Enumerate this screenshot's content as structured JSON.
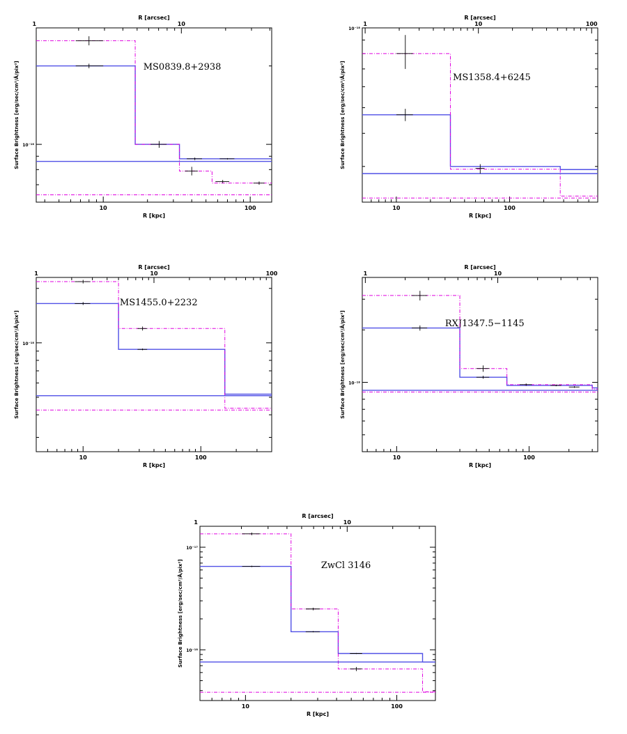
{
  "figure": {
    "colors": {
      "model": "#5050e6",
      "data": "#e000e0",
      "axis": "#000000",
      "bars": "#000000"
    }
  },
  "chart_data": [
    {
      "type": "line",
      "title": "",
      "annotation": "MS0839.8+2938",
      "xlabel": "R [kpc]",
      "x2label": "R [arcsec]",
      "ylabel": "Surface Brightness [erg/sec/cm²/Å/pix²]",
      "xlog": true,
      "ylog": true,
      "xlim": [
        3.5,
        140
      ],
      "ylim": [
        6e-19,
        2.8e-18
      ],
      "x_ticks": [
        {
          "v": 10,
          "label": "10"
        },
        {
          "v": 100,
          "label": "100"
        }
      ],
      "y_ticks": [
        {
          "v": 1e-18,
          "label": "10⁻¹⁸"
        }
      ],
      "top_axis": {
        "kpc_per_arcsec": 3.4,
        "ticks": [
          {
            "v": 1,
            "label": "1"
          },
          {
            "v": 10,
            "label": "10"
          }
        ]
      },
      "series": [
        {
          "name": "model",
          "style": "solid",
          "edges": [
            3.5,
            16.5,
            33,
            140
          ],
          "values": [
            2e-18,
            1e-18,
            8.8e-19
          ]
        },
        {
          "name": "data",
          "style": "dashdot",
          "edges": [
            3.5,
            16.5,
            33,
            55,
            140
          ],
          "values": [
            2.5e-18,
            1e-18,
            7.9e-19,
            7.1e-19
          ]
        },
        {
          "name": "model background",
          "style": "solid",
          "edges": [
            3.5,
            140
          ],
          "values": [
            8.6e-19
          ]
        },
        {
          "name": "data background",
          "style": "dashdot",
          "edges": [
            3.5,
            140
          ],
          "values": [
            6.4e-19
          ]
        }
      ],
      "points": [
        {
          "x": 8,
          "y": 2.5e-18,
          "xerr": [
            6.5,
            10
          ],
          "yerr": [
            2.4e-18,
            2.6e-18
          ]
        },
        {
          "x": 8,
          "y": 2e-18,
          "xerr": [
            6.5,
            10
          ],
          "yerr": [
            1.96e-18,
            2.04e-18
          ]
        },
        {
          "x": 24,
          "y": 1e-18,
          "xerr": [
            21,
            27
          ],
          "yerr": [
            9.7e-19,
            1.03e-18
          ]
        },
        {
          "x": 40,
          "y": 7.9e-19,
          "xerr": [
            36,
            44
          ],
          "yerr": [
            7.6e-19,
            8.2e-19
          ]
        },
        {
          "x": 42,
          "y": 8.8e-19,
          "xerr": [
            37,
            47
          ],
          "yerr": [
            8.7e-19,
            8.9e-19
          ]
        },
        {
          "x": 65,
          "y": 7.2e-19,
          "xerr": [
            58,
            72
          ],
          "yerr": [
            7.1e-19,
            7.3e-19
          ]
        },
        {
          "x": 70,
          "y": 8.8e-19,
          "xerr": [
            62,
            78
          ],
          "yerr": [
            8.75e-19,
            8.85e-19
          ]
        },
        {
          "x": 115,
          "y": 7.1e-19,
          "xerr": [
            105,
            125
          ],
          "yerr": [
            7e-19,
            7.2e-19
          ]
        }
      ]
    },
    {
      "type": "line",
      "title": "",
      "annotation": "MS1358.4+6245",
      "xlabel": "R [kpc]",
      "x2label": "R [arcsec]",
      "ylabel": "Surface Brightness [erg/sec/cm²/Å/pix²]",
      "xlog": true,
      "ylog": true,
      "xlim": [
        5,
        600
      ],
      "ylim": [
        2.2e-19,
        1e-18
      ],
      "x_ticks": [
        {
          "v": 10,
          "label": "10"
        },
        {
          "v": 100,
          "label": "100"
        }
      ],
      "y_ticks": [
        {
          "v": 1e-18,
          "label": "10⁻¹⁸"
        }
      ],
      "top_axis": {
        "kpc_per_arcsec": 5.3,
        "ticks": [
          {
            "v": 1,
            "label": "1"
          },
          {
            "v": 10,
            "label": "10"
          },
          {
            "v": 100,
            "label": "100"
          }
        ]
      },
      "series": [
        {
          "name": "model",
          "style": "solid",
          "edges": [
            5,
            30,
            280,
            600
          ],
          "values": [
            4.7e-19,
            3e-19,
            2.92e-19
          ]
        },
        {
          "name": "data",
          "style": "dashdot",
          "edges": [
            5,
            30,
            280,
            600
          ],
          "values": [
            8e-19,
            2.93e-19,
            2.32e-19
          ]
        },
        {
          "name": "model background",
          "style": "solid",
          "edges": [
            5,
            600
          ],
          "values": [
            2.82e-19
          ]
        },
        {
          "name": "data background",
          "style": "dashdot",
          "edges": [
            5,
            600
          ],
          "values": [
            2.28e-19
          ]
        }
      ],
      "points": [
        {
          "x": 12,
          "y": 8e-19,
          "xerr": [
            10,
            14
          ],
          "yerr": [
            7e-19,
            9.4e-19
          ]
        },
        {
          "x": 12,
          "y": 4.7e-19,
          "xerr": [
            10,
            14
          ],
          "yerr": [
            4.45e-19,
            4.95e-19
          ]
        },
        {
          "x": 55,
          "y": 2.95e-19,
          "xerr": [
            50,
            60
          ],
          "yerr": [
            2.82e-19,
            3.06e-19
          ]
        }
      ]
    },
    {
      "type": "line",
      "title": "",
      "annotation": "MS1455.0+2232",
      "xlabel": "R [kpc]",
      "x2label": "R [arcsec]",
      "ylabel": "Surface Brightness [erg/sec/cm²/Å/pix²]",
      "xlog": true,
      "ylog": true,
      "xlim": [
        4,
        400
      ],
      "ylim": [
        2.5e-19,
        2.3e-18
      ],
      "x_ticks": [
        {
          "v": 10,
          "label": "10"
        },
        {
          "v": 100,
          "label": "100"
        }
      ],
      "y_ticks": [
        {
          "v": 1e-18,
          "label": "10⁻¹⁸"
        }
      ],
      "top_axis": {
        "kpc_per_arcsec": 4.0,
        "ticks": [
          {
            "v": 1,
            "label": "1"
          },
          {
            "v": 10,
            "label": "10"
          },
          {
            "v": 100,
            "label": "100"
          }
        ]
      },
      "series": [
        {
          "name": "model",
          "style": "solid",
          "edges": [
            4,
            20,
            160,
            400
          ],
          "values": [
            1.65e-18,
            9.2e-19,
            5.2e-19
          ]
        },
        {
          "name": "data",
          "style": "dashdot",
          "edges": [
            4,
            20,
            160,
            400
          ],
          "values": [
            2.18e-18,
            1.2e-18,
            4.35e-19
          ]
        },
        {
          "name": "model background",
          "style": "solid",
          "edges": [
            4,
            400
          ],
          "values": [
            5.1e-19
          ]
        },
        {
          "name": "data background",
          "style": "dashdot",
          "edges": [
            4,
            400
          ],
          "values": [
            4.25e-19
          ]
        }
      ],
      "points": [
        {
          "x": 10,
          "y": 2.18e-18,
          "xerr": [
            8.5,
            11.5
          ],
          "yerr": [
            2.13e-18,
            2.23e-18
          ]
        },
        {
          "x": 10,
          "y": 1.65e-18,
          "xerr": [
            8.5,
            11.5
          ],
          "yerr": [
            1.62e-18,
            1.68e-18
          ]
        },
        {
          "x": 32,
          "y": 1.2e-18,
          "xerr": [
            29,
            35
          ],
          "yerr": [
            1.17e-18,
            1.23e-18
          ]
        },
        {
          "x": 32,
          "y": 9.2e-19,
          "xerr": [
            29,
            35
          ],
          "yerr": [
            9.1e-19,
            9.3e-19
          ]
        }
      ]
    },
    {
      "type": "line",
      "title": "",
      "annotation": "RXJ1347.5−1145",
      "xlabel": "R [kpc]",
      "x2label": "R [arcsec]",
      "ylabel": "Surface Brightness [erg/sec/cm²/Å/pix²]",
      "xlog": true,
      "ylog": true,
      "xlim": [
        5.5,
        330
      ],
      "ylim": [
        4e-19,
        4e-18
      ],
      "x_ticks": [
        {
          "v": 10,
          "label": "10"
        },
        {
          "v": 100,
          "label": "100"
        }
      ],
      "y_ticks": [
        {
          "v": 1e-18,
          "label": "10⁻¹⁸"
        }
      ],
      "top_axis": {
        "kpc_per_arcsec": 5.8,
        "ticks": [
          {
            "v": 1,
            "label": "1"
          },
          {
            "v": 10,
            "label": "10"
          }
        ]
      },
      "series": [
        {
          "name": "model",
          "style": "solid",
          "edges": [
            5.5,
            30,
            68,
            300,
            330
          ],
          "values": [
            2.05e-18,
            1.07e-18,
            9.6e-19,
            9.3e-19
          ]
        },
        {
          "name": "data",
          "style": "dashdot",
          "edges": [
            5.5,
            30,
            68,
            300,
            330
          ],
          "values": [
            3.15e-18,
            1.2e-18,
            9.7e-19,
            9.15e-19
          ]
        },
        {
          "name": "model background",
          "style": "solid",
          "edges": [
            5.5,
            330
          ],
          "values": [
            9e-19
          ]
        },
        {
          "name": "data background",
          "style": "dashdot",
          "edges": [
            5.5,
            330
          ],
          "values": [
            8.8e-19
          ]
        }
      ],
      "points": [
        {
          "x": 15,
          "y": 3.15e-18,
          "xerr": [
            13,
            17
          ],
          "yerr": [
            2.95e-18,
            3.35e-18
          ]
        },
        {
          "x": 15,
          "y": 2.05e-18,
          "xerr": [
            13,
            17
          ],
          "yerr": [
            1.98e-18,
            2.12e-18
          ]
        },
        {
          "x": 45,
          "y": 1.2e-18,
          "xerr": [
            40,
            50
          ],
          "yerr": [
            1.15e-18,
            1.25e-18
          ]
        },
        {
          "x": 45,
          "y": 1.07e-18,
          "xerr": [
            40,
            50
          ],
          "yerr": [
            1.05e-18,
            1.09e-18
          ]
        },
        {
          "x": 95,
          "y": 9.7e-19,
          "xerr": [
            85,
            105
          ],
          "yerr": [
            9.55e-19,
            9.85e-19
          ]
        },
        {
          "x": 160,
          "y": 9.6e-19,
          "xerr": [
            145,
            175
          ],
          "yerr": [
            9.5e-19,
            9.7e-19
          ]
        },
        {
          "x": 220,
          "y": 9.4e-19,
          "xerr": [
            200,
            240
          ],
          "yerr": [
            9.3e-19,
            9.5e-19
          ]
        }
      ]
    },
    {
      "type": "line",
      "title": "",
      "annotation": "ZwCl 3146",
      "xlabel": "R [kpc]",
      "x2label": "R [arcsec]",
      "ylabel": "Surface Brightness [erg/sec/cm²/Å/pix²]",
      "xlog": true,
      "ylog": true,
      "xlim": [
        5,
        180
      ],
      "ylim": [
        3.2e-19,
        1.6e-17
      ],
      "x_ticks": [
        {
          "v": 10,
          "label": "10"
        },
        {
          "v": 100,
          "label": "100"
        }
      ],
      "y_ticks": [
        {
          "v": 1e-17,
          "label": "10⁻¹⁷"
        },
        {
          "v": 1e-18,
          "label": "10⁻¹⁸"
        }
      ],
      "top_axis": {
        "kpc_per_arcsec": 4.7,
        "ticks": [
          {
            "v": 1,
            "label": "1"
          },
          {
            "v": 10,
            "label": "10"
          }
        ]
      },
      "series": [
        {
          "name": "model",
          "style": "solid",
          "edges": [
            5,
            20,
            41,
            148,
            180
          ],
          "values": [
            6.5e-18,
            1.5e-18,
            9.2e-19,
            7.6e-19
          ]
        },
        {
          "name": "data",
          "style": "dashdot",
          "edges": [
            5,
            20,
            41,
            148,
            180
          ],
          "values": [
            1.35e-17,
            2.5e-18,
            6.5e-19,
            3.9e-19
          ]
        },
        {
          "name": "model background",
          "style": "solid",
          "edges": [
            5,
            180
          ],
          "values": [
            7.6e-19
          ]
        },
        {
          "name": "data background",
          "style": "dashdot",
          "edges": [
            5,
            180
          ],
          "values": [
            3.85e-19
          ]
        }
      ],
      "points": [
        {
          "x": 11,
          "y": 1.35e-17,
          "xerr": [
            9.5,
            12.5
          ],
          "yerr": [
            1.31e-17,
            1.39e-17
          ]
        },
        {
          "x": 11,
          "y": 6.5e-18,
          "xerr": [
            9.5,
            12.5
          ],
          "yerr": [
            6.4e-18,
            6.6e-18
          ]
        },
        {
          "x": 28,
          "y": 2.5e-18,
          "xerr": [
            25,
            31
          ],
          "yerr": [
            2.43e-18,
            2.57e-18
          ]
        },
        {
          "x": 28,
          "y": 1.5e-18,
          "xerr": [
            25,
            31
          ],
          "yerr": [
            1.48e-18,
            1.52e-18
          ]
        },
        {
          "x": 54,
          "y": 9.2e-19,
          "xerr": [
            49,
            59
          ],
          "yerr": [
            9.1e-19,
            9.3e-19
          ]
        },
        {
          "x": 54,
          "y": 6.5e-19,
          "xerr": [
            49,
            59
          ],
          "yerr": [
            6.2e-19,
            6.8e-19
          ]
        }
      ]
    }
  ]
}
